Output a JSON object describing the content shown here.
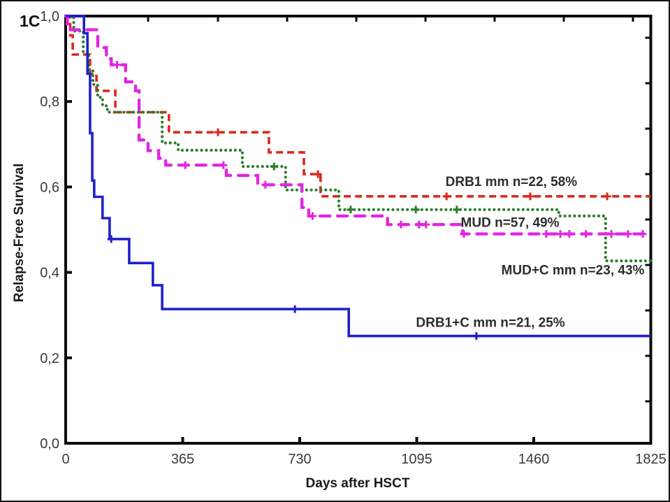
{
  "panel_label": "1C",
  "chart_data": {
    "type": "line",
    "subtype": "kaplan-meier-step-survival",
    "title": "",
    "xlabel": "Days after HSCT",
    "ylabel": "Relapse-Free Survival",
    "xlim": [
      0,
      1825
    ],
    "ylim": [
      0.0,
      1.0
    ],
    "grid": false,
    "legend_position": "inline-labels",
    "x_ticks": [
      {
        "value": 0,
        "label": "0"
      },
      {
        "value": 365,
        "label": "365"
      },
      {
        "value": 730,
        "label": "730"
      },
      {
        "value": 1095,
        "label": "1095"
      },
      {
        "value": 1460,
        "label": "1460"
      },
      {
        "value": 1825,
        "label": "1825"
      }
    ],
    "y_ticks": [
      {
        "value": 0.0,
        "label": "0,0"
      },
      {
        "value": 0.2,
        "label": "0,2"
      },
      {
        "value": 0.4,
        "label": "0,4"
      },
      {
        "value": 0.6,
        "label": "0,6"
      },
      {
        "value": 0.8,
        "label": "0,8"
      },
      {
        "value": 1.0,
        "label": "1,0"
      }
    ],
    "series": [
      {
        "name": "DRB1 mm",
        "label": "DRB1 mm n=22, 58%",
        "n": 22,
        "final_percent": 58,
        "color": "#d92a1e",
        "line_style": "dash",
        "points": [
          [
            0,
            1.0
          ],
          [
            14,
            0.955
          ],
          [
            22,
            0.91
          ],
          [
            76,
            0.865
          ],
          [
            96,
            0.825
          ],
          [
            155,
            0.775
          ],
          [
            322,
            0.728
          ],
          [
            634,
            0.681
          ],
          [
            743,
            0.63
          ],
          [
            795,
            0.578
          ]
        ],
        "censor_days": [
          475,
          787,
          1188,
          1449,
          1689
        ],
        "label_anchor": {
          "day": 1390,
          "value": 0.612
        }
      },
      {
        "name": "MUD+C mm",
        "label": "MUD+C mm n=23, 43%",
        "n": 23,
        "final_percent": 43,
        "color": "#2d7d2d",
        "line_style": "dot",
        "points": [
          [
            0,
            1.0
          ],
          [
            25,
            0.965
          ],
          [
            55,
            0.915
          ],
          [
            72,
            0.875
          ],
          [
            85,
            0.84
          ],
          [
            100,
            0.81
          ],
          [
            115,
            0.79
          ],
          [
            130,
            0.775
          ],
          [
            301,
            0.703
          ],
          [
            351,
            0.686
          ],
          [
            551,
            0.648
          ],
          [
            686,
            0.593
          ],
          [
            852,
            0.547
          ],
          [
            1538,
            0.532
          ],
          [
            1684,
            0.427
          ]
        ],
        "censor_days": [
          650,
          889,
          1092,
          1220
        ],
        "label_anchor": {
          "day": 1582,
          "value": 0.405
        }
      },
      {
        "name": "MUD",
        "label": "MUD n=57, 49%",
        "n": 57,
        "final_percent": 49,
        "color": "#e226e2",
        "line_style": "longdash",
        "points": [
          [
            0,
            1.0
          ],
          [
            5,
            0.982
          ],
          [
            15,
            0.968
          ],
          [
            100,
            0.926
          ],
          [
            127,
            0.9
          ],
          [
            142,
            0.886
          ],
          [
            187,
            0.846
          ],
          [
            218,
            0.825
          ],
          [
            229,
            0.71
          ],
          [
            257,
            0.685
          ],
          [
            290,
            0.667
          ],
          [
            312,
            0.651
          ],
          [
            501,
            0.627
          ],
          [
            599,
            0.605
          ],
          [
            737,
            0.552
          ],
          [
            758,
            0.532
          ],
          [
            1004,
            0.512
          ],
          [
            1238,
            0.49
          ]
        ],
        "censor_days": [
          160,
          373,
          492,
          623,
          770,
          1046,
          1102,
          1124,
          1242,
          1499,
          1543,
          1571,
          1623,
          1702,
          1754,
          1800
        ],
        "label_anchor": {
          "day": 1386,
          "value": 0.516
        }
      },
      {
        "name": "DRB1+C mm",
        "label": "DRB1+C mm n=21, 25%",
        "n": 21,
        "final_percent": 25,
        "color": "#2020cc",
        "line_style": "solid",
        "points": [
          [
            0,
            1.0
          ],
          [
            57,
            0.96
          ],
          [
            68,
            0.865
          ],
          [
            76,
            0.726
          ],
          [
            83,
            0.615
          ],
          [
            89,
            0.577
          ],
          [
            115,
            0.527
          ],
          [
            137,
            0.478
          ],
          [
            198,
            0.422
          ],
          [
            272,
            0.37
          ],
          [
            301,
            0.314
          ],
          [
            883,
            0.251
          ]
        ],
        "censor_days": [
          142,
          715,
          1281
        ],
        "label_anchor": {
          "day": 1325,
          "value": 0.282
        }
      }
    ]
  }
}
